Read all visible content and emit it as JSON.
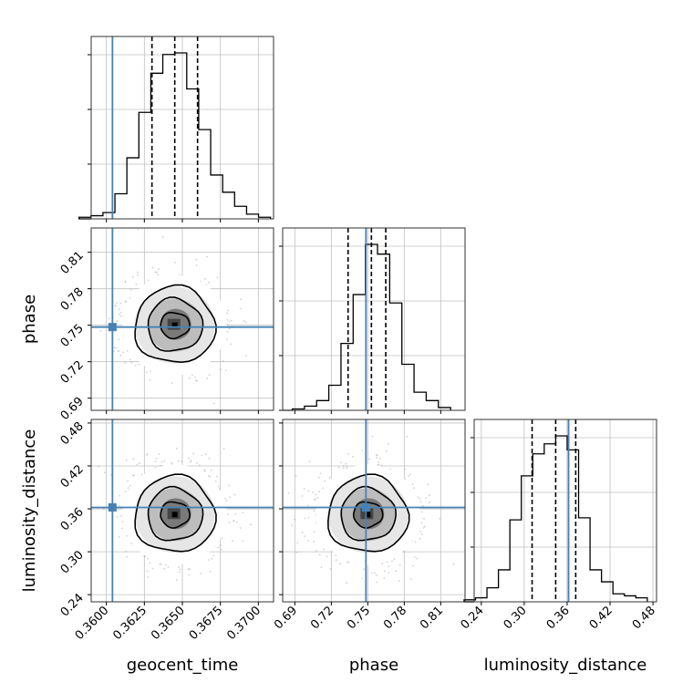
{
  "chart_data": {
    "type": "corner",
    "parameters": [
      {
        "name": "geocent_time",
        "range": [
          0.359,
          0.371
        ],
        "ticks": [
          0.36,
          0.3625,
          0.365,
          0.3675,
          0.37
        ],
        "tick_labels": [
          "0.3600",
          "0.3625",
          "0.3650",
          "0.3675",
          "0.3700"
        ],
        "truth": 0.3604,
        "quantiles": [
          0.363,
          0.3645,
          0.366
        ]
      },
      {
        "name": "phase",
        "range": [
          0.68,
          0.83
        ],
        "ticks": [
          0.69,
          0.72,
          0.75,
          0.78,
          0.81
        ],
        "tick_labels": [
          "0.69",
          "0.72",
          "0.75",
          "0.78",
          "0.81"
        ],
        "truth": 0.7485,
        "quantiles": [
          0.7338,
          0.753,
          0.7648
        ]
      },
      {
        "name": "luminosity_distance",
        "range": [
          0.23,
          0.485
        ],
        "ticks": [
          0.24,
          0.3,
          0.36,
          0.42,
          0.48
        ],
        "tick_labels": [
          "0.24",
          "0.30",
          "0.36",
          "0.42",
          "0.48"
        ],
        "truth": 0.362,
        "quantiles": [
          0.311,
          0.344,
          0.372
        ]
      }
    ],
    "histograms": [
      {
        "parameter": "geocent_time",
        "counts": [
          1,
          2,
          4,
          16,
          39,
          68,
          93,
          105,
          106,
          83,
          57,
          28,
          17,
          8,
          3,
          1
        ]
      },
      {
        "parameter": "phase",
        "counts": [
          1,
          3,
          7,
          18,
          48,
          83,
          119,
          112,
          77,
          33,
          13,
          7,
          2
        ]
      },
      {
        "parameter": "luminosity_distance",
        "counts": [
          1,
          2,
          7,
          16,
          41,
          63,
          74,
          79,
          83,
          76,
          42,
          16,
          10,
          4,
          3,
          2
        ]
      }
    ],
    "density_centers": {
      "geocent_time_vs_phase": [
        0.3645,
        0.75
      ],
      "geocent_time_vs_luminosity_distance": [
        0.3645,
        0.352
      ],
      "phase_vs_luminosity_distance": [
        0.75,
        0.352
      ]
    },
    "colors": {
      "truth": "#4682b4",
      "hist": "#000000",
      "grid": "#c0c0c0"
    },
    "grid": true
  }
}
